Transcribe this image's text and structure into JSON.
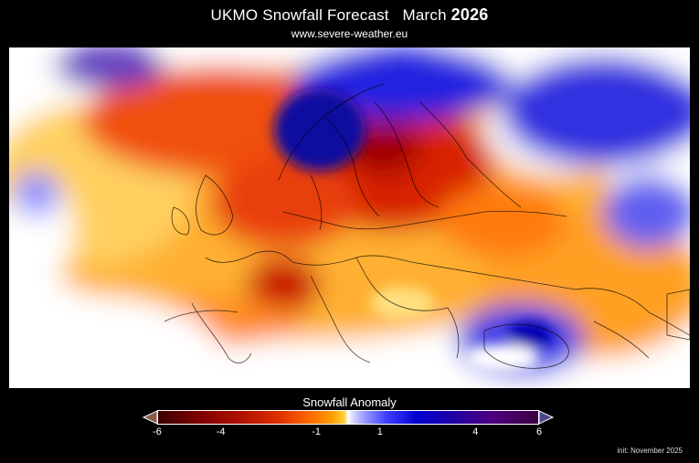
{
  "header": {
    "title": "UKMO Snowfall Forecast   March ",
    "year": "2026",
    "subtitle": "www.severe-weather.eu"
  },
  "legend": {
    "title": "Snowfall Anomaly",
    "ticks": [
      "-6",
      "-4",
      "-1",
      "1",
      "4",
      "6"
    ],
    "range": [
      -6,
      6
    ]
  },
  "colors": {
    "strong_deficit": "#8b0000",
    "deficit": "#ff6a00",
    "neutral": "#ffffff",
    "surplus": "#0000d0",
    "strong_surplus": "#500080"
  },
  "footer": {
    "init": "init: November 2025"
  }
}
